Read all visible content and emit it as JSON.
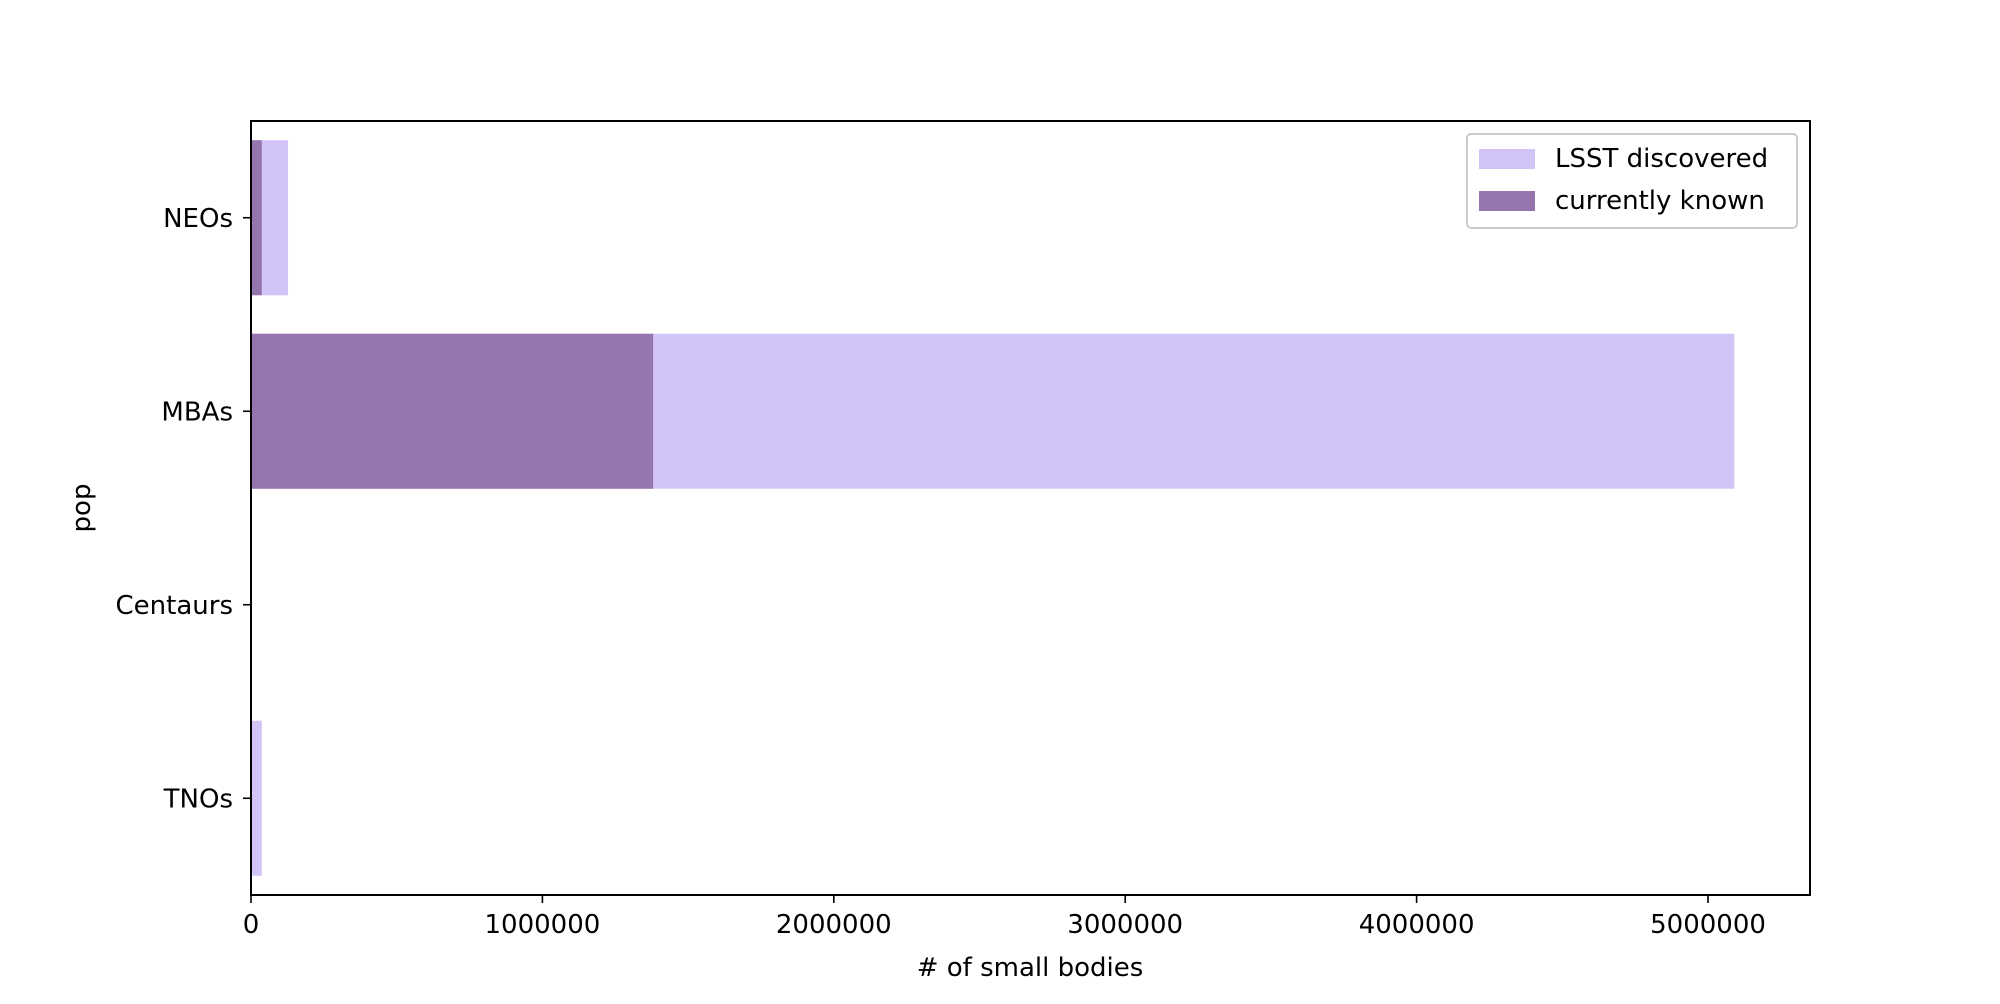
{
  "chart_data": {
    "type": "bar",
    "orientation": "horizontal",
    "title": "",
    "xlabel": "# of small bodies",
    "ylabel": "pop",
    "categories": [
      "NEOs",
      "MBAs",
      "Centaurs",
      "TNOs"
    ],
    "series": [
      {
        "name": "LSST discovered",
        "color": "#d3c4f7",
        "values": [
          127000,
          5090000,
          1000,
          37000
        ]
      },
      {
        "name": "currently known",
        "color": "#9575ad",
        "values": [
          37000,
          1380000,
          500,
          3000
        ]
      }
    ],
    "xlim": [
      0,
      5350000
    ],
    "xticks": [
      0,
      1000000,
      2000000,
      3000000,
      4000000,
      5000000
    ],
    "xtick_labels": [
      "0",
      "1000000",
      "2000000",
      "3000000",
      "4000000",
      "5000000"
    ],
    "grid": false,
    "legend_position": "top-right"
  }
}
